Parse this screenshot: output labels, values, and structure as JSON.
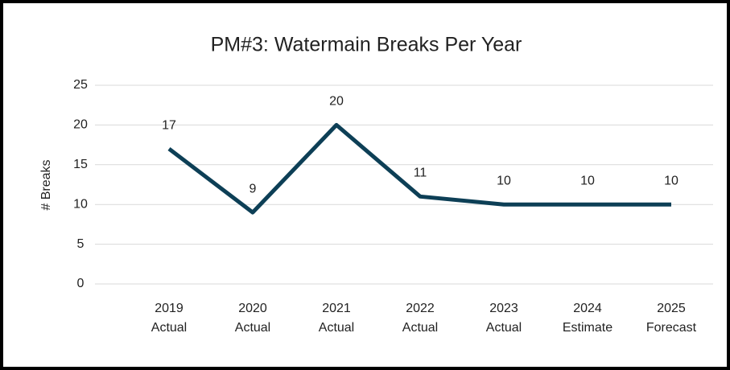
{
  "chart_data": {
    "type": "line",
    "title": "PM#3: Watermain Breaks Per Year",
    "y_label": "# Breaks",
    "categories": [
      [
        "2019",
        "Actual"
      ],
      [
        "2020",
        "Actual"
      ],
      [
        "2021",
        "Actual"
      ],
      [
        "2022",
        "Actual"
      ],
      [
        "2023",
        "Actual"
      ],
      [
        "2024",
        "Estimate"
      ],
      [
        "2025",
        "Forecast"
      ]
    ],
    "values": [
      17,
      9,
      20,
      11,
      10,
      10,
      10
    ],
    "color": "#0d3f56",
    "ylim": [
      0,
      25
    ],
    "yticks": [
      0,
      5,
      10,
      15,
      20,
      25
    ],
    "grid": true
  }
}
